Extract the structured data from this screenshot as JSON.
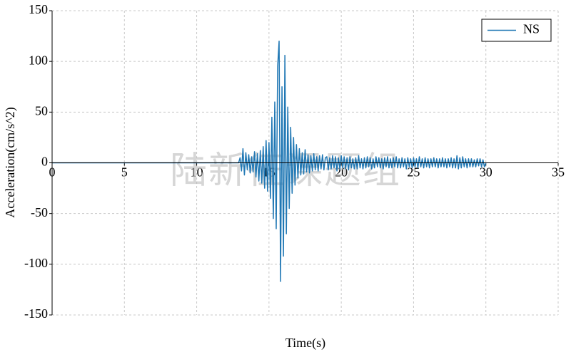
{
  "chart_data": {
    "type": "line",
    "x_label": "Time(s)",
    "y_label": "Acceleration(cm/s^2)",
    "watermark": "陆新征课题组",
    "xlim": [
      0,
      35
    ],
    "xticks": [
      0,
      5,
      10,
      15,
      20,
      25,
      30,
      35
    ],
    "ylim": [
      -150,
      150
    ],
    "yticks": [
      -150,
      -100,
      -50,
      0,
      50,
      100,
      150
    ],
    "grid": true,
    "legend": "upper right",
    "x": [
      0,
      12.9,
      13,
      13.1,
      13.2,
      13.3,
      13.4,
      13.5,
      13.6,
      13.7,
      13.8,
      13.9,
      14,
      14.1,
      14.2,
      14.3,
      14.4,
      14.5,
      14.6,
      14.7,
      14.8,
      14.9,
      15,
      15.1,
      15.2,
      15.3,
      15.4,
      15.5,
      15.6,
      15.7,
      15.8,
      15.9,
      16,
      16.1,
      16.2,
      16.3,
      16.4,
      16.5,
      16.6,
      16.7,
      16.8,
      16.9,
      17,
      17.1,
      17.2,
      17.3,
      17.4,
      17.5,
      17.6,
      17.7,
      17.8,
      17.9,
      18,
      18.1,
      18.2,
      18.3,
      18.4,
      18.5,
      18.6,
      18.7,
      18.8,
      18.9,
      19,
      19.1,
      19.2,
      19.3,
      19.4,
      19.5,
      19.6,
      19.7,
      19.8,
      19.9,
      20,
      20.1,
      20.2,
      20.3,
      20.4,
      20.5,
      20.6,
      20.7,
      20.8,
      20.9,
      21,
      21.1,
      21.2,
      21.3,
      21.4,
      21.5,
      21.6,
      21.7,
      21.8,
      21.9,
      22,
      22.1,
      22.2,
      22.3,
      22.4,
      22.5,
      22.6,
      22.7,
      22.8,
      22.9,
      23,
      23.1,
      23.2,
      23.3,
      23.4,
      23.5,
      23.6,
      23.7,
      23.8,
      23.9,
      24,
      24.1,
      24.2,
      24.3,
      24.4,
      24.5,
      24.6,
      24.7,
      24.8,
      24.9,
      25,
      25.1,
      25.2,
      25.3,
      25.4,
      25.5,
      25.6,
      25.7,
      25.8,
      25.9,
      26,
      26.1,
      26.2,
      26.3,
      26.4,
      26.5,
      26.6,
      26.7,
      26.8,
      26.9,
      27,
      27.1,
      27.2,
      27.3,
      27.4,
      27.5,
      27.6,
      27.7,
      27.8,
      27.9,
      28,
      28.1,
      28.2,
      28.3,
      28.4,
      28.5,
      28.6,
      28.7,
      28.8,
      28.9,
      29,
      29.1,
      29.2,
      29.3,
      29.4,
      29.5,
      29.6,
      29.7,
      29.8,
      29.9,
      30
    ],
    "series": [
      {
        "name": "NS",
        "color": "#1f77b4",
        "values": [
          0,
          0,
          5,
          -8,
          14,
          -12,
          10,
          -7,
          8,
          -10,
          6,
          -9,
          11,
          -14,
          9,
          -18,
          12,
          -20,
          16,
          -25,
          22,
          -28,
          20,
          -35,
          45,
          -55,
          60,
          -65,
          95,
          120,
          -117,
          75,
          -92,
          106,
          -70,
          55,
          -45,
          35,
          -30,
          25,
          -22,
          18,
          -15,
          14,
          -12,
          10,
          -11,
          13,
          -9,
          8,
          -10,
          7,
          -8,
          9,
          -7,
          6,
          -8,
          7,
          -6,
          8,
          -7,
          5,
          6,
          -7,
          5,
          -6,
          7,
          -5,
          6,
          -8,
          5,
          -6,
          7,
          -5,
          6,
          -6,
          5,
          -7,
          6,
          -5,
          4,
          -6,
          5,
          -6,
          7,
          -5,
          4,
          -6,
          5,
          -5,
          6,
          -4,
          5,
          -6,
          4,
          -5,
          6,
          -4,
          5,
          -5,
          4,
          -6,
          5,
          -4,
          6,
          -5,
          4,
          -5,
          5,
          -4,
          6,
          -5,
          4,
          -5,
          5,
          -4,
          4,
          -6,
          5,
          -4,
          4,
          -5,
          5,
          -4,
          4,
          -5,
          6,
          -4,
          4,
          -5,
          5,
          -4,
          4,
          -5,
          4,
          -4,
          5,
          -4,
          4,
          -5,
          4,
          -4,
          5,
          -4,
          4,
          -5,
          4,
          -4,
          5,
          -5,
          4,
          -5,
          7,
          -6,
          5,
          -5,
          6,
          -4,
          4,
          -5,
          4,
          -4,
          4,
          -4,
          3,
          -4,
          4,
          -3,
          4,
          -4,
          3,
          -4,
          0
        ]
      }
    ]
  }
}
